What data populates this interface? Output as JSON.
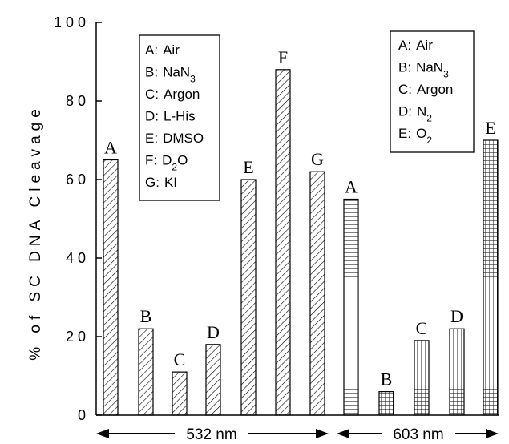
{
  "chart_data": {
    "type": "bar",
    "ylabel": "% of SC DNA Cleavage",
    "ylim": [
      0,
      100
    ],
    "yticks": [
      "0",
      "20",
      "40",
      "60",
      "80",
      "100"
    ],
    "groups": [
      {
        "range_label": "532 nm",
        "pattern": "diagonal-hatch",
        "categories": [
          "A",
          "B",
          "C",
          "D",
          "E",
          "F",
          "G"
        ],
        "values": [
          65,
          22,
          11,
          18,
          60,
          88,
          62
        ]
      },
      {
        "range_label": "603 nm",
        "pattern": "crosshatch",
        "categories": [
          "A",
          "B",
          "C",
          "D",
          "E"
        ],
        "values": [
          55,
          6,
          19,
          22,
          70
        ]
      }
    ],
    "legends": [
      {
        "placement": "top-left",
        "items": [
          {
            "key": "A",
            "sep": ":",
            "label": "Air"
          },
          {
            "key": "B",
            "sep": ":",
            "label": "NaN",
            "sub": "3"
          },
          {
            "key": "C",
            "sep": ":",
            "label": "Argon"
          },
          {
            "key": "D",
            "sep": ":",
            "label": "L-His"
          },
          {
            "key": "E",
            "sep": ":",
            "label": "DMSO"
          },
          {
            "key": "F",
            "sep": ":",
            "label": "D",
            "sub": "2",
            "tail": "O"
          },
          {
            "key": "G",
            "sep": ":",
            "label": "KI"
          }
        ]
      },
      {
        "placement": "top-right",
        "items": [
          {
            "key": "A",
            "sep": ":",
            "label": "Air"
          },
          {
            "key": "B",
            "sep": ":",
            "label": "NaN",
            "sub": "3"
          },
          {
            "key": "C",
            "sep": ":",
            "label": "Argon"
          },
          {
            "key": "D",
            "sep": ":",
            "label": "N",
            "sub": "2"
          },
          {
            "key": "E",
            "sep": ":",
            "label": "O",
            "sub": "2"
          }
        ]
      }
    ],
    "colors": {
      "ink": "#000000",
      "background": "#ffffff"
    }
  }
}
